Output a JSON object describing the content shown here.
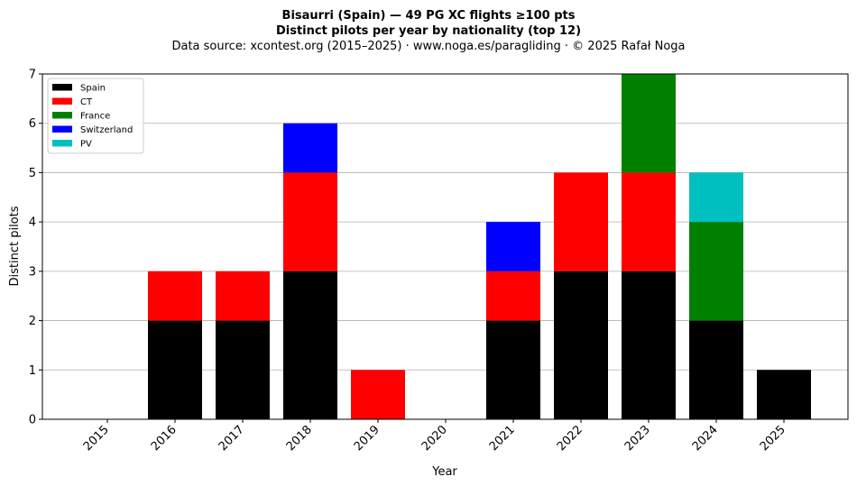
{
  "chart_data": {
    "type": "bar",
    "stacked": true,
    "title": "Bisaurri (Spain)  —  49 PG XC flights ≥100 pts",
    "subtitle": "Distinct pilots per year by nationality (top 12)",
    "source": "Data source: xcontest.org (2015–2025)  ·  www.noga.es/paragliding  ·  © 2025 Rafał Noga",
    "xlabel": "Year",
    "ylabel": "Distinct pilots",
    "ylim": [
      0,
      7
    ],
    "yticks": [
      0,
      1,
      2,
      3,
      4,
      5,
      6,
      7
    ],
    "grid": "y",
    "legend_position": "top-left",
    "categories": [
      "2015",
      "2016",
      "2017",
      "2018",
      "2019",
      "2020",
      "2021",
      "2022",
      "2023",
      "2024",
      "2025"
    ],
    "series": [
      {
        "name": "Spain",
        "color": "#000000",
        "values": [
          0,
          2,
          2,
          3,
          0,
          0,
          2,
          3,
          3,
          2,
          1
        ]
      },
      {
        "name": "CT",
        "color": "#ff0000",
        "values": [
          0,
          1,
          1,
          2,
          1,
          0,
          1,
          2,
          2,
          0,
          0
        ]
      },
      {
        "name": "France",
        "color": "#008000",
        "values": [
          0,
          0,
          0,
          0,
          0,
          0,
          0,
          0,
          2,
          2,
          0
        ]
      },
      {
        "name": "Switzerland",
        "color": "#0000ff",
        "values": [
          0,
          0,
          0,
          1,
          0,
          0,
          1,
          0,
          0,
          0,
          0
        ]
      },
      {
        "name": "PV",
        "color": "#00bfbf",
        "values": [
          0,
          0,
          0,
          0,
          0,
          0,
          0,
          0,
          0,
          1,
          0
        ]
      }
    ]
  }
}
